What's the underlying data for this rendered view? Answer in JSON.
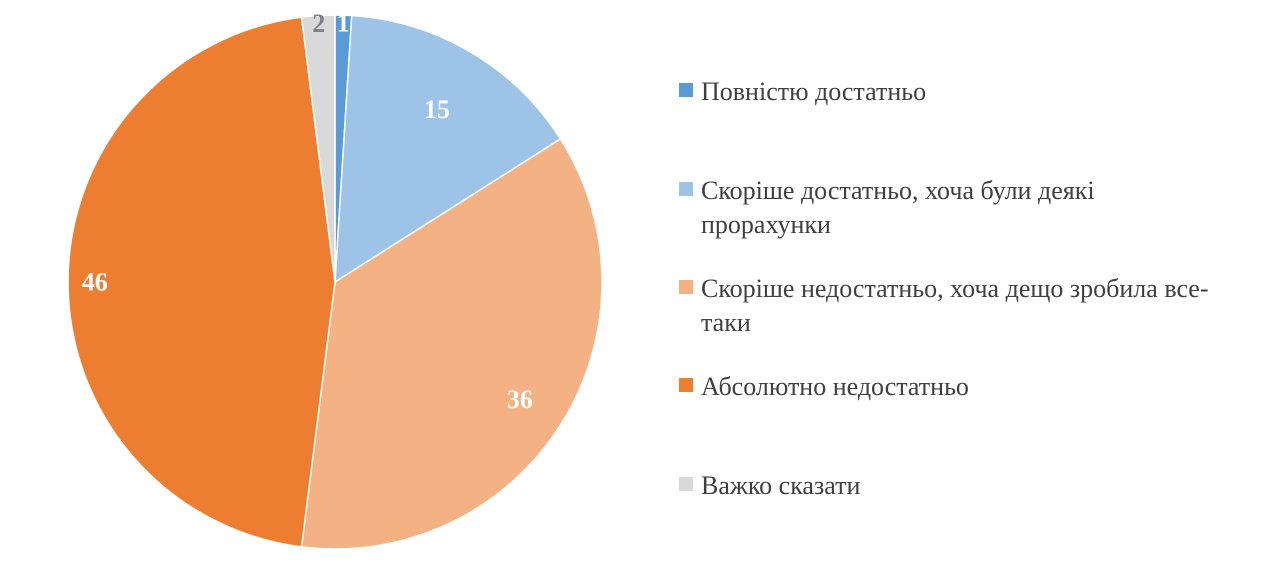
{
  "chart_data": {
    "type": "pie",
    "title": "",
    "start_angle_deg": 0,
    "direction": "clockwise",
    "legend_position": "right",
    "slices": [
      {
        "label": "Повністю достатньо",
        "value": 1,
        "color": "#5B9BD5",
        "data_label_color": "#ffffff"
      },
      {
        "label": "Скоріше достатньо, хоча були деякі прорахунки",
        "value": 15,
        "color": "#9DC3E6",
        "data_label_color": "#ffffff"
      },
      {
        "label": "Скоріше недостатньо, хоча дещо зробила все-таки",
        "value": 36,
        "color": "#F4B183",
        "data_label_color": "#ffffff"
      },
      {
        "label": "Абсолютно недостатньо",
        "value": 46,
        "color": "#ED7D31",
        "data_label_color": "#ffffff"
      },
      {
        "label": "Важко сказати",
        "value": 2,
        "color": "#D9D9D9",
        "data_label_color": "#808080"
      }
    ]
  }
}
